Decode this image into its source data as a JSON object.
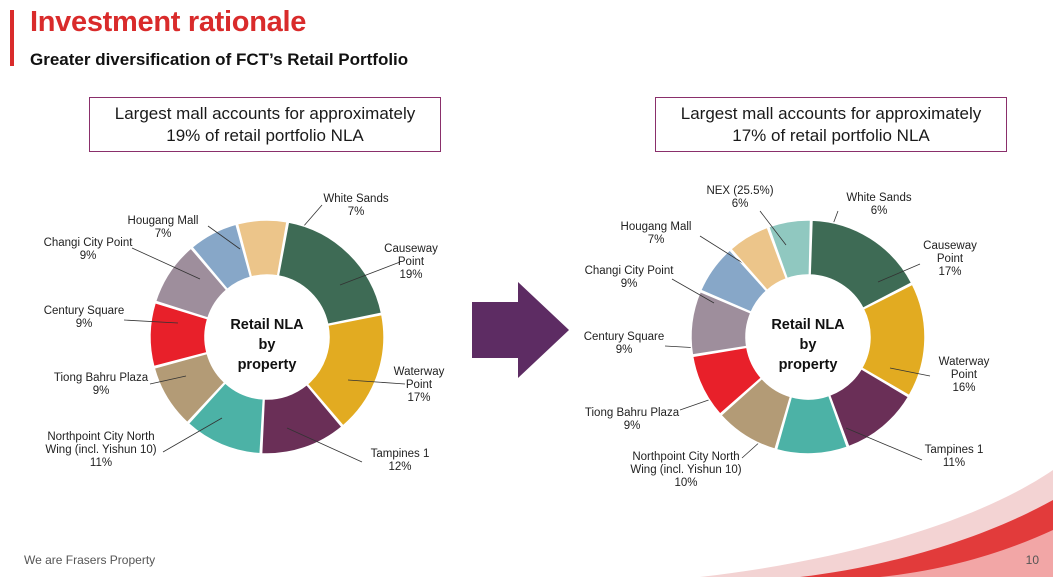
{
  "header": {
    "title": "Investment rationale",
    "subtitle": "Greater diversification of FCT’s Retail Portfolio"
  },
  "callouts": {
    "left": "Largest mall accounts for approximately 19% of retail portfolio NLA",
    "right": "Largest mall accounts for approximately 17% of retail portfolio NLA"
  },
  "footer": {
    "text": "We are Frasers Property",
    "page": "10"
  },
  "chart_data": [
    {
      "type": "pie",
      "center_label": [
        "Retail NLA",
        "by",
        "property"
      ],
      "slices": [
        {
          "name": "White Sands",
          "label": [
            "White Sands",
            "7%"
          ],
          "value": 7,
          "color": "#ecc58a"
        },
        {
          "name": "Causeway Point",
          "label": [
            "Causeway",
            "Point",
            "19%"
          ],
          "value": 19,
          "color": "#3e6b55"
        },
        {
          "name": "Waterway Point",
          "label": [
            "Waterway",
            "Point",
            "17%"
          ],
          "value": 17,
          "color": "#e2ab21"
        },
        {
          "name": "Tampines 1",
          "label": [
            "Tampines 1",
            "12%"
          ],
          "value": 12,
          "color": "#6a2f57"
        },
        {
          "name": "Northpoint City North Wing (incl. Yishun 10)",
          "label": [
            "Northpoint City North",
            "Wing (incl. Yishun 10)",
            "11%"
          ],
          "value": 11,
          "color": "#4cb2a6"
        },
        {
          "name": "Tiong Bahru Plaza",
          "label": [
            "Tiong Bahru Plaza",
            "9%"
          ],
          "value": 9,
          "color": "#b39b76"
        },
        {
          "name": "Century Square",
          "label": [
            "Century Square",
            "9%"
          ],
          "value": 9,
          "color": "#e8202a"
        },
        {
          "name": "Changi City Point",
          "label": [
            "Changi City Point",
            "9%"
          ],
          "value": 9,
          "color": "#9e8e9c"
        },
        {
          "name": "Hougang Mall",
          "label": [
            "Hougang Mall",
            "7%"
          ],
          "value": 7,
          "color": "#87a7c8"
        }
      ]
    },
    {
      "type": "pie",
      "center_label": [
        "Retail NLA",
        "by",
        "property"
      ],
      "slices": [
        {
          "name": "White Sands",
          "label": [
            "White Sands",
            "6%"
          ],
          "value": 6,
          "color": "#90c8c0"
        },
        {
          "name": "Causeway Point",
          "label": [
            "Causeway",
            "Point",
            "17%"
          ],
          "value": 17,
          "color": "#3e6b55"
        },
        {
          "name": "Waterway Point",
          "label": [
            "Waterway",
            "Point",
            "16%"
          ],
          "value": 16,
          "color": "#e2ab21"
        },
        {
          "name": "Tampines 1",
          "label": [
            "Tampines 1",
            "11%"
          ],
          "value": 11,
          "color": "#6a2f57"
        },
        {
          "name": "Northpoint City North Wing (incl. Yishun 10)",
          "label": [
            "Northpoint City North",
            "Wing (incl. Yishun 10)",
            "10%"
          ],
          "value": 10,
          "color": "#4cb2a6"
        },
        {
          "name": "Tiong Bahru Plaza",
          "label": [
            "Tiong Bahru Plaza",
            "9%"
          ],
          "value": 9,
          "color": "#b39b76"
        },
        {
          "name": "Century Square",
          "label": [
            "Century Square",
            "9%"
          ],
          "value": 9,
          "color": "#e8202a"
        },
        {
          "name": "Changi City Point",
          "label": [
            "Changi City Point",
            "9%"
          ],
          "value": 9,
          "color": "#9e8e9c"
        },
        {
          "name": "Hougang Mall",
          "label": [
            "Hougang Mall",
            "7%"
          ],
          "value": 7,
          "color": "#87a7c8"
        },
        {
          "name": "NEX (25.5%)",
          "label": [
            "NEX (25.5%)",
            "6%"
          ],
          "value": 6,
          "color": "#ecc58a"
        }
      ]
    }
  ],
  "colors": {
    "accent": "#d92b2b",
    "arrow": "#5d2c63",
    "callout_border": "#8a2f6b"
  }
}
